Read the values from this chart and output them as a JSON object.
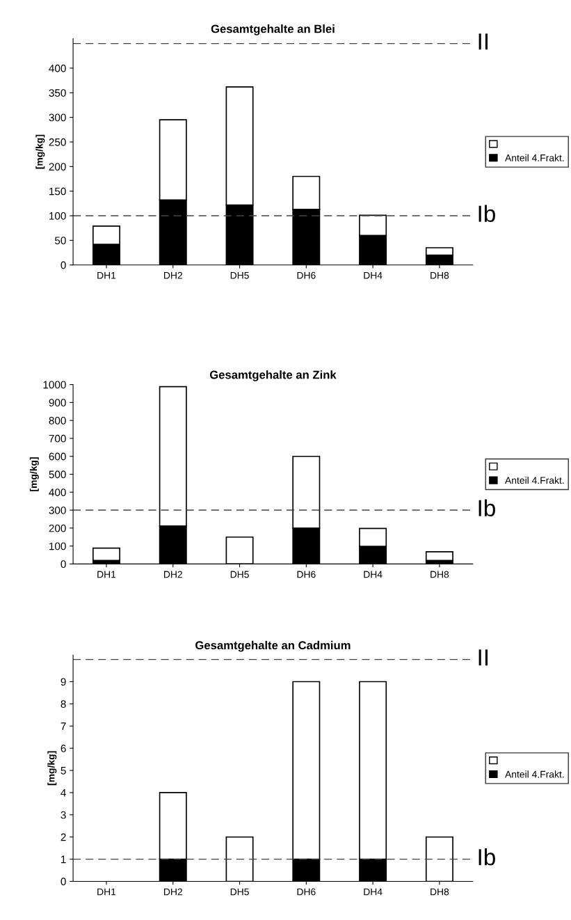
{
  "chart_data": [
    {
      "type": "bar",
      "title": "Gesamtgehalte an Blei",
      "ylabel": "[mg/kg]",
      "categories": [
        "DH1",
        "DH2",
        "DH5",
        "DH6",
        "DH4",
        "DH8"
      ],
      "stacked": true,
      "legend": "right",
      "ylim": [
        0,
        460
      ],
      "yticks": [
        0,
        50,
        100,
        150,
        200,
        250,
        300,
        350,
        400
      ],
      "series": [
        {
          "name": "Anteil 4.Frakt.",
          "color": "#000000",
          "values": [
            42,
            132,
            122,
            113,
            60,
            20
          ]
        },
        {
          "color": "#ffffff",
          "values": [
            37,
            163,
            240,
            67,
            41,
            15
          ]
        }
      ],
      "ref_lines": [
        {
          "axis": "y",
          "value": 450,
          "label": "II",
          "line_style": "dashed"
        },
        {
          "axis": "y",
          "value": 100,
          "label": "Ib",
          "line_style": "dashed"
        }
      ]
    },
    {
      "type": "bar",
      "title": "Gesamtgehalte an Zink",
      "ylabel": "[mg/kg]",
      "categories": [
        "DH1",
        "DH2",
        "DH5",
        "DH6",
        "DH4",
        "DH8"
      ],
      "stacked": true,
      "legend": "right",
      "ylim": [
        0,
        1000
      ],
      "yticks": [
        0,
        100,
        200,
        300,
        400,
        500,
        600,
        700,
        800,
        900,
        1000
      ],
      "series": [
        {
          "name": "Anteil 4.Frakt.",
          "color": "#000000",
          "values": [
            20,
            212,
            null,
            200,
            98,
            20
          ]
        },
        {
          "color": "#ffffff",
          "values": [
            68,
            776,
            150,
            400,
            100,
            48
          ]
        }
      ],
      "ref_lines": [
        {
          "axis": "y",
          "value": 300,
          "label": "Ib",
          "line_style": "dashed"
        }
      ]
    },
    {
      "type": "bar",
      "title": "Gesamtgehalte an Cadmium",
      "ylabel": "[mg/kg]",
      "categories": [
        "DH1",
        "DH2",
        "DH5",
        "DH6",
        "DH4",
        "DH8"
      ],
      "stacked": true,
      "legend": "right",
      "ylim": [
        0,
        10.2
      ],
      "yticks": [
        0,
        1,
        2,
        3,
        4,
        5,
        6,
        7,
        8,
        9
      ],
      "series": [
        {
          "name": "Anteil 4.Frakt.",
          "color": "#000000",
          "values": [
            0,
            1,
            0,
            1,
            1,
            0
          ]
        },
        {
          "color": "#ffffff",
          "values": [
            0,
            3,
            2,
            8,
            8,
            2
          ]
        }
      ],
      "ref_lines": [
        {
          "axis": "y",
          "value": 10,
          "label": "II",
          "line_style": "dashed"
        },
        {
          "axis": "y",
          "value": 1,
          "label": "Ib",
          "line_style": "dashed"
        }
      ]
    }
  ]
}
